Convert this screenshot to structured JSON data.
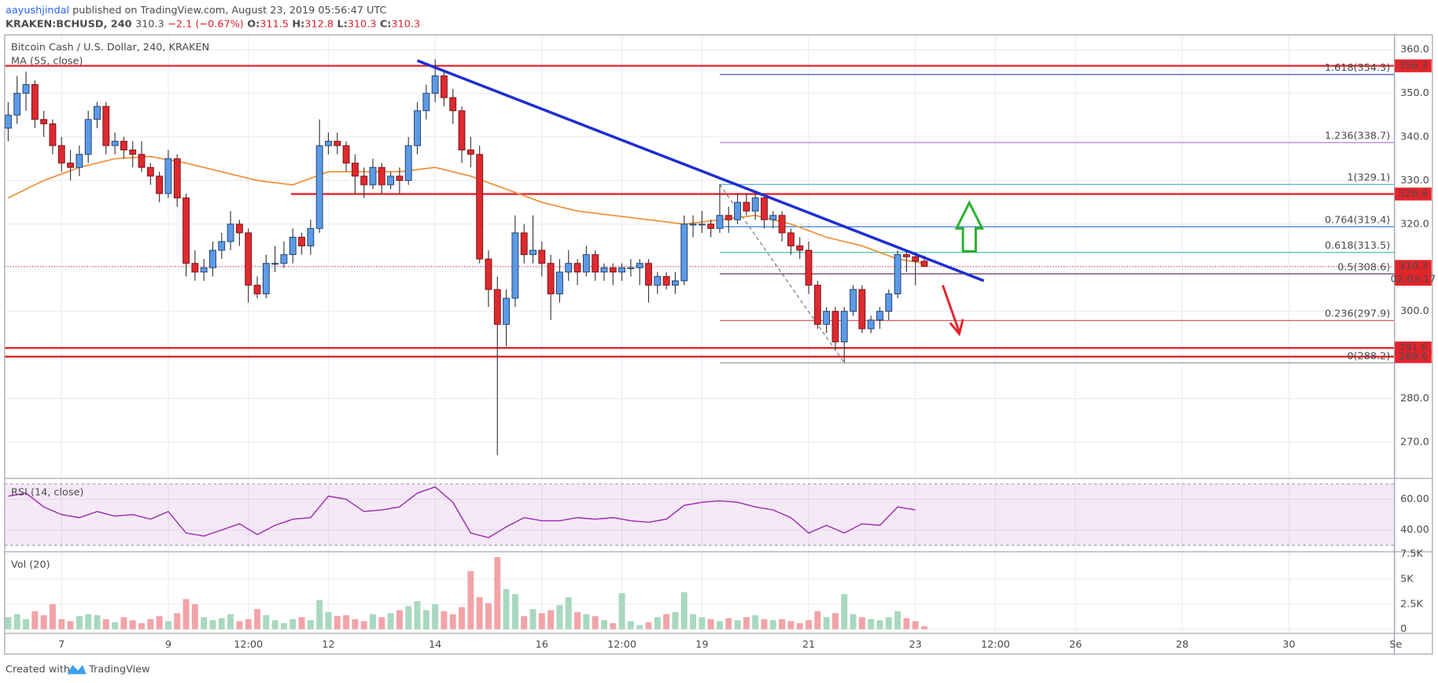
{
  "header": {
    "author": "aayushjindal",
    "published": "published on TradingView.com, August 23, 2019 05:56:47 UTC",
    "symbol": "KRAKEN:BCHUSD, 240",
    "last": "310.3",
    "change": "−2.1 (−0.67%)",
    "ohlc": [
      {
        "key": "O:",
        "value": "311.5"
      },
      {
        "key": "H:",
        "value": "312.8"
      },
      {
        "key": "L:",
        "value": "310.3"
      },
      {
        "key": "C:",
        "value": "310.3"
      }
    ]
  },
  "footer": {
    "created": "Created with",
    "brand": "TradingView"
  },
  "chart_data": {
    "type": "candlestick",
    "title": "Bitcoin Cash / U.S. Dollar, 240, KRAKEN",
    "ma_name": "MA (55, close)",
    "up_color": "#5d9ae6",
    "down_color": "#dd2a2f",
    "ma_color": "#f0923a",
    "xlim": [
      -0.4,
      155.8
    ],
    "xticks": [
      {
        "value": 6,
        "label": "7"
      },
      {
        "value": 18,
        "label": "9"
      },
      {
        "value": 27,
        "label": "12:00"
      },
      {
        "value": 36,
        "label": "12"
      },
      {
        "value": 48,
        "label": "14"
      },
      {
        "value": 60,
        "label": "16"
      },
      {
        "value": 69,
        "label": "12:00"
      },
      {
        "value": 78,
        "label": "19"
      },
      {
        "value": 90,
        "label": "21"
      },
      {
        "value": 102,
        "label": "23"
      },
      {
        "value": 111,
        "label": "12:00"
      },
      {
        "value": 120,
        "label": "26"
      },
      {
        "value": 132,
        "label": "28"
      },
      {
        "value": 144,
        "label": "30"
      },
      {
        "value": 156,
        "label": "Se"
      }
    ],
    "ylim": [
      261.8,
      363.4
    ],
    "yticks": [
      {
        "value": 270,
        "label": "270.0"
      },
      {
        "value": 280,
        "label": "280.0"
      },
      {
        "value": 290,
        "label": "290.0"
      },
      {
        "value": 300,
        "label": "300.0"
      },
      {
        "value": 310,
        "label": "310.0"
      },
      {
        "value": 320,
        "label": "320.0"
      },
      {
        "value": 330,
        "label": "330.0"
      },
      {
        "value": 340,
        "label": "340.0"
      },
      {
        "value": 350,
        "label": "350.0"
      },
      {
        "value": 360,
        "label": "360.0"
      }
    ],
    "candles": [
      [
        342,
        348,
        339,
        345
      ],
      [
        345,
        354,
        343,
        350
      ],
      [
        350,
        355,
        346,
        352
      ],
      [
        352,
        353,
        342,
        344
      ],
      [
        344,
        346,
        340,
        343
      ],
      [
        343,
        344,
        336,
        338
      ],
      [
        338,
        340,
        332,
        334
      ],
      [
        334,
        337,
        330,
        333
      ],
      [
        333,
        338,
        331,
        336
      ],
      [
        336,
        346,
        334,
        344
      ],
      [
        344,
        348,
        342,
        347
      ],
      [
        347,
        348,
        336,
        338
      ],
      [
        338,
        341,
        336,
        339
      ],
      [
        339,
        340,
        335,
        337
      ],
      [
        337,
        339,
        333,
        336
      ],
      [
        336,
        339,
        332,
        333
      ],
      [
        333,
        334,
        329,
        331
      ],
      [
        331,
        332,
        325,
        327
      ],
      [
        327,
        337,
        326,
        335
      ],
      [
        335,
        336,
        324,
        326
      ],
      [
        326,
        327,
        308,
        311
      ],
      [
        311,
        314,
        307,
        309
      ],
      [
        309,
        312,
        307,
        310
      ],
      [
        310,
        316,
        308,
        314
      ],
      [
        314,
        318,
        312,
        316
      ],
      [
        316,
        323,
        314,
        320
      ],
      [
        320,
        321,
        315,
        318
      ],
      [
        318,
        319,
        302,
        306
      ],
      [
        306,
        308,
        303,
        304
      ],
      [
        304,
        313,
        303,
        311
      ],
      [
        311,
        315,
        309,
        311
      ],
      [
        311,
        316,
        310,
        313
      ],
      [
        313,
        319,
        311,
        317
      ],
      [
        317,
        318,
        313,
        315
      ],
      [
        315,
        321,
        313,
        319
      ],
      [
        319,
        344,
        318,
        338
      ],
      [
        338,
        341,
        336,
        339
      ],
      [
        339,
        341,
        336,
        338
      ],
      [
        338,
        339,
        332,
        334
      ],
      [
        334,
        336,
        327,
        331
      ],
      [
        331,
        333,
        326,
        329
      ],
      [
        329,
        335,
        328,
        333
      ],
      [
        333,
        334,
        327,
        329
      ],
      [
        329,
        332,
        328,
        331
      ],
      [
        331,
        333,
        327,
        330
      ],
      [
        330,
        340,
        329,
        338
      ],
      [
        338,
        348,
        336,
        346
      ],
      [
        346,
        352,
        344,
        350
      ],
      [
        350,
        357.8,
        348,
        354
      ],
      [
        354,
        355,
        347,
        349
      ],
      [
        349,
        351,
        343,
        346
      ],
      [
        346,
        347,
        334,
        337
      ],
      [
        337,
        340,
        333,
        336
      ],
      [
        336,
        338,
        311,
        312
      ],
      [
        312,
        314,
        301,
        305
      ],
      [
        305,
        308,
        267,
        297
      ],
      [
        297,
        305,
        292,
        303
      ],
      [
        303,
        322,
        301,
        318
      ],
      [
        318,
        320,
        311,
        313
      ],
      [
        313,
        322,
        311,
        314
      ],
      [
        314,
        316,
        308,
        311
      ],
      [
        311,
        313,
        298,
        304
      ],
      [
        304,
        312,
        302,
        309
      ],
      [
        309,
        314,
        307,
        311
      ],
      [
        311,
        312,
        306,
        309
      ],
      [
        309,
        315,
        308,
        313
      ],
      [
        313,
        314,
        307,
        309
      ],
      [
        309,
        311,
        307,
        310
      ],
      [
        310,
        311,
        306,
        309
      ],
      [
        309,
        311,
        307,
        310
      ],
      [
        310,
        312,
        308,
        310
      ],
      [
        310,
        312,
        306,
        311
      ],
      [
        311,
        312,
        302,
        306
      ],
      [
        306,
        309,
        304,
        308
      ],
      [
        308,
        309,
        305,
        306
      ],
      [
        306,
        309,
        304,
        307
      ],
      [
        307,
        322,
        306,
        320
      ],
      [
        320,
        322,
        317,
        320
      ],
      [
        320,
        323,
        318,
        320
      ],
      [
        320,
        321,
        317,
        319
      ],
      [
        319,
        329.1,
        318,
        322
      ],
      [
        322,
        324,
        318,
        321
      ],
      [
        321,
        327,
        320,
        325
      ],
      [
        325,
        327,
        322,
        323
      ],
      [
        323,
        327,
        321,
        326
      ],
      [
        326,
        327,
        319,
        321
      ],
      [
        321,
        323,
        319,
        322
      ],
      [
        322,
        323,
        316,
        318
      ],
      [
        318,
        319,
        313,
        315
      ],
      [
        315,
        317,
        312,
        314
      ],
      [
        314,
        316,
        304,
        306
      ],
      [
        306,
        307,
        296,
        297
      ],
      [
        297,
        301,
        295,
        300
      ],
      [
        300,
        301,
        291,
        293
      ],
      [
        293,
        301,
        288.2,
        300
      ],
      [
        300,
        306,
        299,
        305
      ],
      [
        305,
        306,
        295,
        296
      ],
      [
        296,
        299,
        295,
        298
      ],
      [
        298,
        301,
        296,
        300
      ],
      [
        300,
        305,
        298,
        304
      ],
      [
        304,
        314,
        303,
        313
      ],
      [
        313,
        314,
        309,
        312.5
      ],
      [
        312.5,
        313.5,
        306,
        311.5
      ],
      [
        311.5,
        312.8,
        310.3,
        310.3
      ]
    ],
    "ma_x": [
      0,
      4,
      8,
      12,
      16,
      20,
      24,
      28,
      32,
      36,
      40,
      44,
      48,
      52,
      56,
      60,
      64,
      68,
      72,
      76,
      80,
      84,
      88,
      92,
      96,
      100,
      103
    ],
    "ma": [
      326,
      330,
      333,
      335,
      335.5,
      334,
      332,
      330,
      329,
      332,
      332,
      332,
      333,
      331,
      328,
      325,
      323,
      322,
      321,
      320,
      321,
      322,
      320,
      317,
      315,
      312,
      311
    ],
    "levels": [
      {
        "price": 356.3,
        "label": "356.3"
      },
      {
        "price": 326.9,
        "label": "326.9"
      },
      {
        "price": 291.6,
        "label": "291.6"
      },
      {
        "price": 289.6,
        "label": "289.6"
      }
    ],
    "level_color": "#e3242b",
    "current": {
      "price": 310.3,
      "label": "310.3",
      "countdown": "02:03:17"
    },
    "trendline": {
      "color": "#1d2fd1",
      "x": [
        46,
        109.7
      ],
      "y": [
        357.5,
        307
      ]
    },
    "fib": [
      {
        "label": "1.618(354.3)",
        "price": 354.3,
        "color": "#3d3dcc"
      },
      {
        "label": "1.236(338.7)",
        "price": 338.7,
        "color": "#b06ad8"
      },
      {
        "label": "1(329.1)",
        "price": 329.1,
        "color": "#5ab4d8"
      },
      {
        "label": "0.764(319.4)",
        "price": 319.4,
        "color": "#2f7ed6"
      },
      {
        "label": "0.618(313.5)",
        "price": 313.5,
        "color": "#2fc4a4"
      },
      {
        "label": "0.5(308.6)",
        "price": 308.6,
        "color": "#6b2d5c"
      },
      {
        "label": "0.236(297.9)",
        "price": 297.9,
        "color": "#e04848"
      },
      {
        "label": "0(288.2)",
        "price": 288.2,
        "color": "#8a8a8a"
      }
    ],
    "rsi_name": "RSI (14, close)",
    "rsi_color": "#9c27b0",
    "rsi_ylim": [
      26.1,
      73.3
    ],
    "rsi_yticks": [
      {
        "value": 60,
        "label": "60.00"
      },
      {
        "value": 40,
        "label": "40.00"
      }
    ],
    "rsi_bands": [
      70,
      30
    ],
    "rsi_x": [
      0,
      2,
      4,
      6,
      8,
      10,
      12,
      14,
      16,
      18,
      20,
      22,
      24,
      26,
      28,
      30,
      32,
      34,
      36,
      38,
      40,
      42,
      44,
      46,
      48,
      50,
      52,
      54,
      56,
      58,
      60,
      62,
      64,
      66,
      68,
      70,
      72,
      74,
      76,
      78,
      80,
      82,
      84,
      86,
      88,
      90,
      92,
      94,
      96,
      98,
      100,
      102
    ],
    "rsi": [
      62,
      64,
      55,
      50,
      48,
      52,
      49,
      50,
      47,
      52,
      38,
      36,
      40,
      44,
      37,
      43,
      47,
      48,
      62,
      60,
      52,
      53,
      55,
      64,
      68,
      58,
      38,
      35,
      42,
      48,
      46,
      46,
      48,
      47,
      48,
      46,
      45,
      47,
      56,
      58,
      59,
      58,
      55,
      53,
      48,
      38,
      43,
      38,
      44,
      43,
      55,
      53
    ],
    "vol_name": "Vol (20)",
    "vol_up_color": "#a8d8bf",
    "vol_down_color": "#f2a3a8",
    "vol_ylim": [
      -370,
      7680
    ],
    "vol_yticks": [
      0,
      {
        "value": 2500,
        "label": "2.5K"
      },
      {
        "value": 5000,
        "label": "5K"
      },
      {
        "value": 7500,
        "label": "7.5K"
      }
    ],
    "volumes": [
      1200,
      1500,
      1000,
      1800,
      1400,
      2500,
      1000,
      800,
      1300,
      1500,
      1400,
      1000,
      700,
      1200,
      900,
      600,
      1000,
      1300,
      800,
      1600,
      3000,
      2500,
      1200,
      900,
      1100,
      1500,
      800,
      1000,
      2000,
      1400,
      900,
      600,
      1000,
      1200,
      900,
      2900,
      1700,
      1300,
      1400,
      1000,
      800,
      1500,
      1200,
      1600,
      1900,
      2300,
      2800,
      1900,
      2500,
      1800,
      1500,
      2200,
      5800,
      3200,
      2600,
      7200,
      4000,
      3500,
      1300,
      2000,
      1600,
      1900,
      2400,
      3200,
      1700,
      1500,
      1300,
      900,
      600,
      3600,
      800,
      400,
      700,
      1200,
      1500,
      1700,
      3700,
      1500,
      1200,
      1000,
      800,
      1100,
      900,
      1200,
      1400,
      1000,
      900,
      1000,
      800,
      600,
      900,
      1800,
      1200,
      1600,
      3500,
      1500,
      1200,
      1000,
      900,
      1200,
      1800,
      1100,
      800,
      300
    ]
  }
}
